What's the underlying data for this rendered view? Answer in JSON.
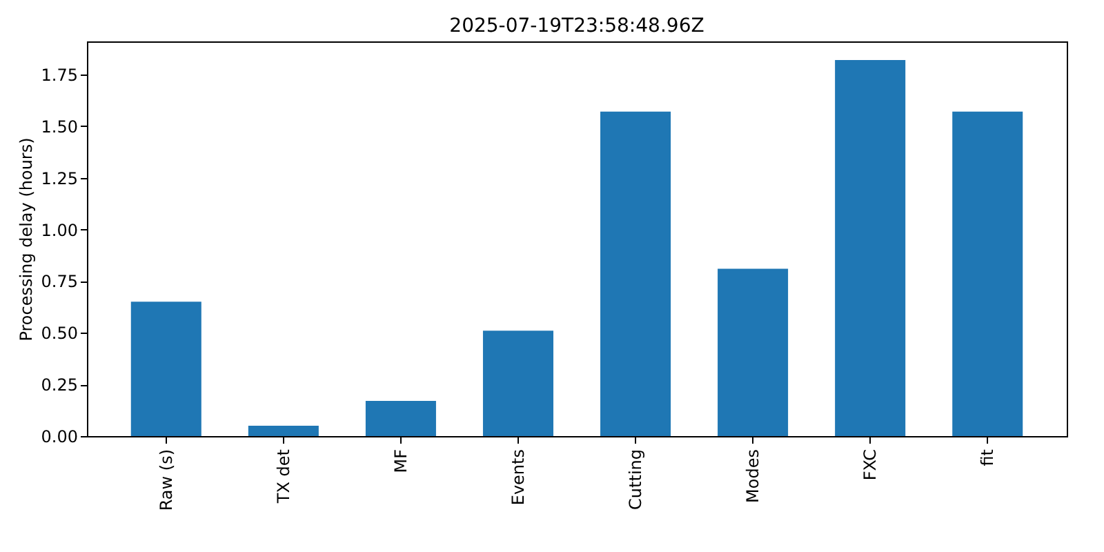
{
  "chart_data": {
    "type": "bar",
    "title": "2025-07-19T23:58:48.96Z",
    "ylabel": "Processing delay (hours)",
    "categories": [
      "Raw (s)",
      "TX det",
      "MF",
      "Events",
      "Cutting",
      "Modes",
      "FXC",
      "fit"
    ],
    "values": [
      0.65,
      0.05,
      0.17,
      0.51,
      1.57,
      0.81,
      1.82,
      1.57
    ],
    "color": "#1f77b4",
    "ylim": [
      0,
      1.91
    ],
    "yticks": [
      {
        "value": 0,
        "label": "0.00"
      },
      0.25,
      {
        "value": 0.5,
        "label": "0.50"
      },
      0.75,
      {
        "value": 1,
        "label": "1.00"
      },
      1.25,
      {
        "value": 1.5,
        "label": "1.50"
      },
      1.75
    ],
    "grid": false
  }
}
